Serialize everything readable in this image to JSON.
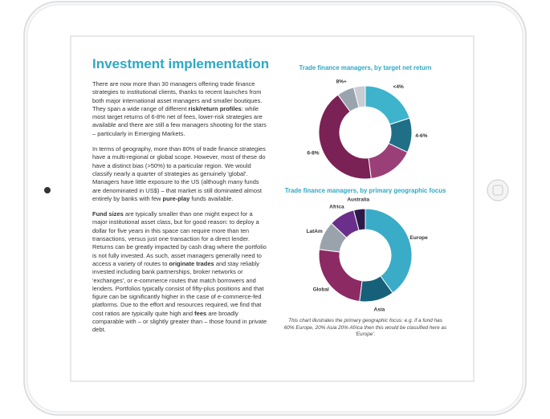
{
  "document": {
    "title": "Investment implementation",
    "paragraphs": [
      [
        "There are now more than 30 managers offering trade finance strategies to institutional clients, thanks to recent launches from both major international asset managers and smaller boutiques. They span a wide range of different ",
        {
          "text": "risk/return profiles",
          "bold": true
        },
        ": while most target returns of 6-8% net of fees, lower-risk strategies are available and there are still a few managers shooting for the stars – particularly in Emerging Markets."
      ],
      [
        "In terms of geography, more than 80% of trade finance strategies have a multi-regional or global scope. However, most of these do have a distinct bias (>50%) to a particular region. We would classify nearly a quarter of strategies as genuinely 'global'. Managers have little exposure to the US (although many funds are denominated in US$) – that market is still dominated almost entirely by banks with few ",
        {
          "text": "pure-play",
          "bold": true
        },
        " funds available."
      ],
      [
        {
          "text": "Fund sizes",
          "bold": true
        },
        " are typically smaller than one might expect for a major institutional asset class, but for good reason: to deploy a dollar for five years in this space can require more than ten transactions, versus just one transaction for a direct lender. Returns can be greatly impacted by cash drag where the portfolio is not fully invested. As such, asset managers generally need to access a variety of routes to ",
        {
          "text": "originate trades",
          "bold": true
        },
        " and stay reliably invested including bank partnerships, broker networks or 'exchanges', or e-commerce routes that match borrowers and lenders. Portfolios typically consist of fifty-plus positions and that figure can be significantly higher in the case of e-commerce-fed platforms. Due to the effort and resources required, we find that cost ratios are typically quite high and ",
        {
          "text": "fees",
          "bold": true
        },
        " are broadly comparable with – or slightly greater than – those found in private debt."
      ]
    ]
  },
  "chart_data": [
    {
      "type": "donut",
      "title": "Trade finance managers, by target net return",
      "categories": [
        "<4%",
        "4-6%",
        null,
        "6-8%",
        "8%+",
        null
      ],
      "values": [
        20,
        12,
        16,
        42,
        6,
        4
      ],
      "colors": [
        "#3db3cc",
        "#1f6f87",
        "#9b3f78",
        "#7a2155",
        "#9aa4ae",
        "#c7cdd2"
      ]
    },
    {
      "type": "donut",
      "title": "Trade finance managers, by primary geographic focus",
      "categories": [
        "Europe",
        "Asia",
        "Global",
        "LatAm",
        "Africa",
        "Australia"
      ],
      "values": [
        40,
        12,
        25,
        10,
        9,
        4
      ],
      "colors": [
        "#3aacc8",
        "#17607a",
        "#8b2a63",
        "#9aa3ab",
        "#6a2f8a",
        "#2b1a4a"
      ],
      "note": "This chart illustrates the primary geographic focus: e.g. if a fund has 60% Europe, 20% Asia 20% Africa then this would be classified here as 'Europe'."
    }
  ]
}
